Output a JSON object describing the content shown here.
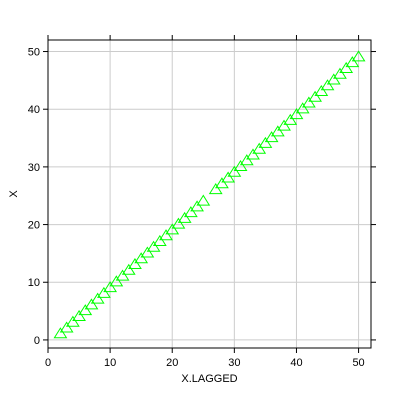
{
  "chart_data": {
    "type": "scatter",
    "title": "",
    "xlabel": "X.LAGGED",
    "ylabel": "X",
    "xlim": [
      0,
      52
    ],
    "ylim": [
      -1.4,
      52
    ],
    "x_ticks": [
      0,
      10,
      20,
      30,
      40,
      50
    ],
    "y_ticks": [
      0,
      10,
      20,
      30,
      40,
      50
    ],
    "grid": true,
    "marker": "open-triangle",
    "marker_color": "#00ff00",
    "grid_color": "#cccccc",
    "series": [
      {
        "x": [
          2,
          3,
          4,
          5,
          6,
          7,
          8,
          9,
          10,
          11,
          12,
          13,
          14,
          15,
          16,
          17,
          18,
          19,
          20,
          21,
          22,
          23,
          24,
          25,
          27,
          28,
          29,
          30,
          31,
          32,
          33,
          34,
          35,
          36,
          37,
          38,
          39,
          40,
          41,
          42,
          43,
          44,
          45,
          46,
          47,
          48,
          49,
          50
        ],
        "y": [
          1,
          2,
          3,
          4,
          5,
          6,
          7,
          8,
          9,
          10,
          11,
          12,
          13,
          14,
          15,
          16,
          17,
          18,
          19,
          20,
          21,
          22,
          23,
          24,
          26,
          27,
          28,
          29,
          30,
          31,
          32,
          33,
          34,
          35,
          36,
          37,
          38,
          39,
          40,
          41,
          42,
          43,
          44,
          45,
          46,
          47,
          48,
          49
        ]
      }
    ]
  }
}
